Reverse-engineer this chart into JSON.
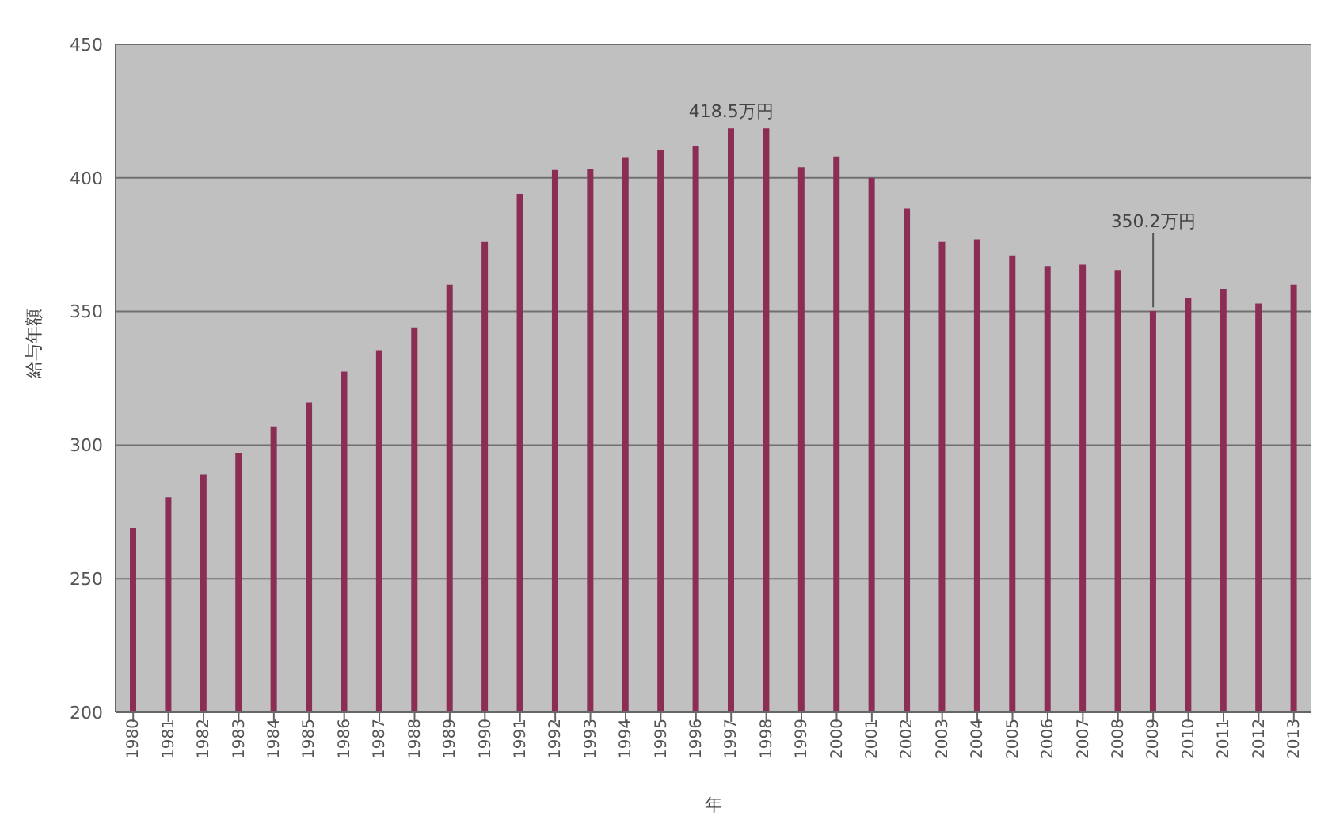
{
  "chart_data": {
    "type": "bar",
    "xlabel": "年",
    "ylabel": "給与年額",
    "categories": [
      "1980",
      "1981",
      "1982",
      "1983",
      "1984",
      "1985",
      "1986",
      "1987",
      "1988",
      "1989",
      "1990",
      "1991",
      "1992",
      "1993",
      "1994",
      "1995",
      "1996",
      "1997",
      "1998",
      "1999",
      "2000",
      "2001",
      "2002",
      "2003",
      "2004",
      "2005",
      "2006",
      "2007",
      "2008",
      "2009",
      "2010",
      "2011",
      "2012",
      "2013"
    ],
    "values": [
      269,
      280.5,
      289,
      297,
      307,
      316,
      327.5,
      335.5,
      344,
      360,
      376,
      394,
      403,
      403.5,
      407.5,
      410.5,
      412,
      418.5,
      418.5,
      404,
      408,
      400,
      388.5,
      376,
      377,
      371,
      367,
      367.5,
      365.5,
      350.2,
      355,
      358.5,
      353,
      360
    ],
    "color": "#8b2d55",
    "ylim": [
      200,
      450
    ],
    "yticks": [
      200,
      250,
      300,
      350,
      400,
      450
    ],
    "grid": "y",
    "annotations": [
      {
        "text": "418.5万円",
        "x": "1997",
        "y": 418.5
      },
      {
        "text": "350.2万円",
        "x": "2009",
        "y": 350.2
      }
    ]
  }
}
